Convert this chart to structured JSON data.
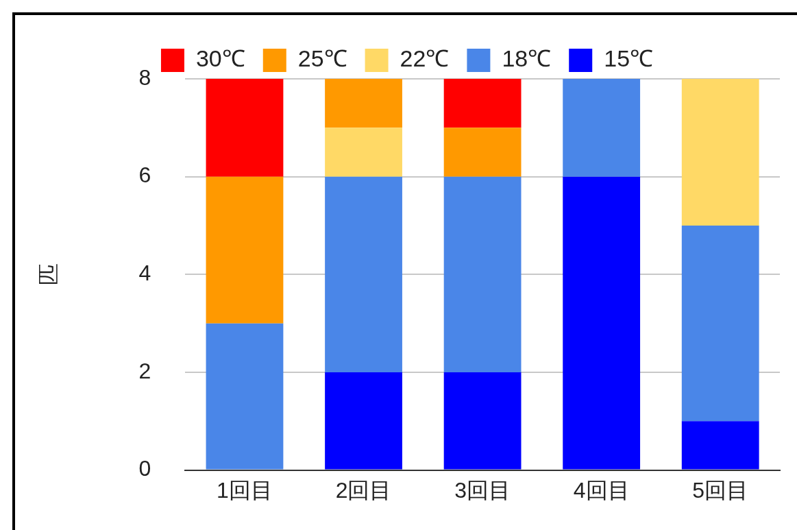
{
  "chart_data": {
    "type": "bar",
    "stacked": true,
    "ylabel": "匹",
    "categories": [
      "1回目",
      "2回目",
      "3回目",
      "4回目",
      "5回目"
    ],
    "series": [
      {
        "name": "15℃",
        "color": "#0000ff",
        "values": [
          0,
          2,
          2,
          6,
          1
        ]
      },
      {
        "name": "18℃",
        "color": "#4a86e8",
        "values": [
          3,
          4,
          4,
          2,
          4
        ]
      },
      {
        "name": "22℃",
        "color": "#ffd966",
        "values": [
          0,
          1,
          0,
          0,
          3
        ]
      },
      {
        "name": "25℃",
        "color": "#ff9900",
        "values": [
          3,
          1,
          1,
          0,
          0
        ]
      },
      {
        "name": "30℃",
        "color": "#ff0000",
        "values": [
          2,
          0,
          1,
          0,
          0
        ]
      }
    ],
    "ylim": [
      0,
      8
    ],
    "yticks": [
      0,
      2,
      4,
      6,
      8
    ],
    "grid": "y",
    "legend": "top"
  }
}
